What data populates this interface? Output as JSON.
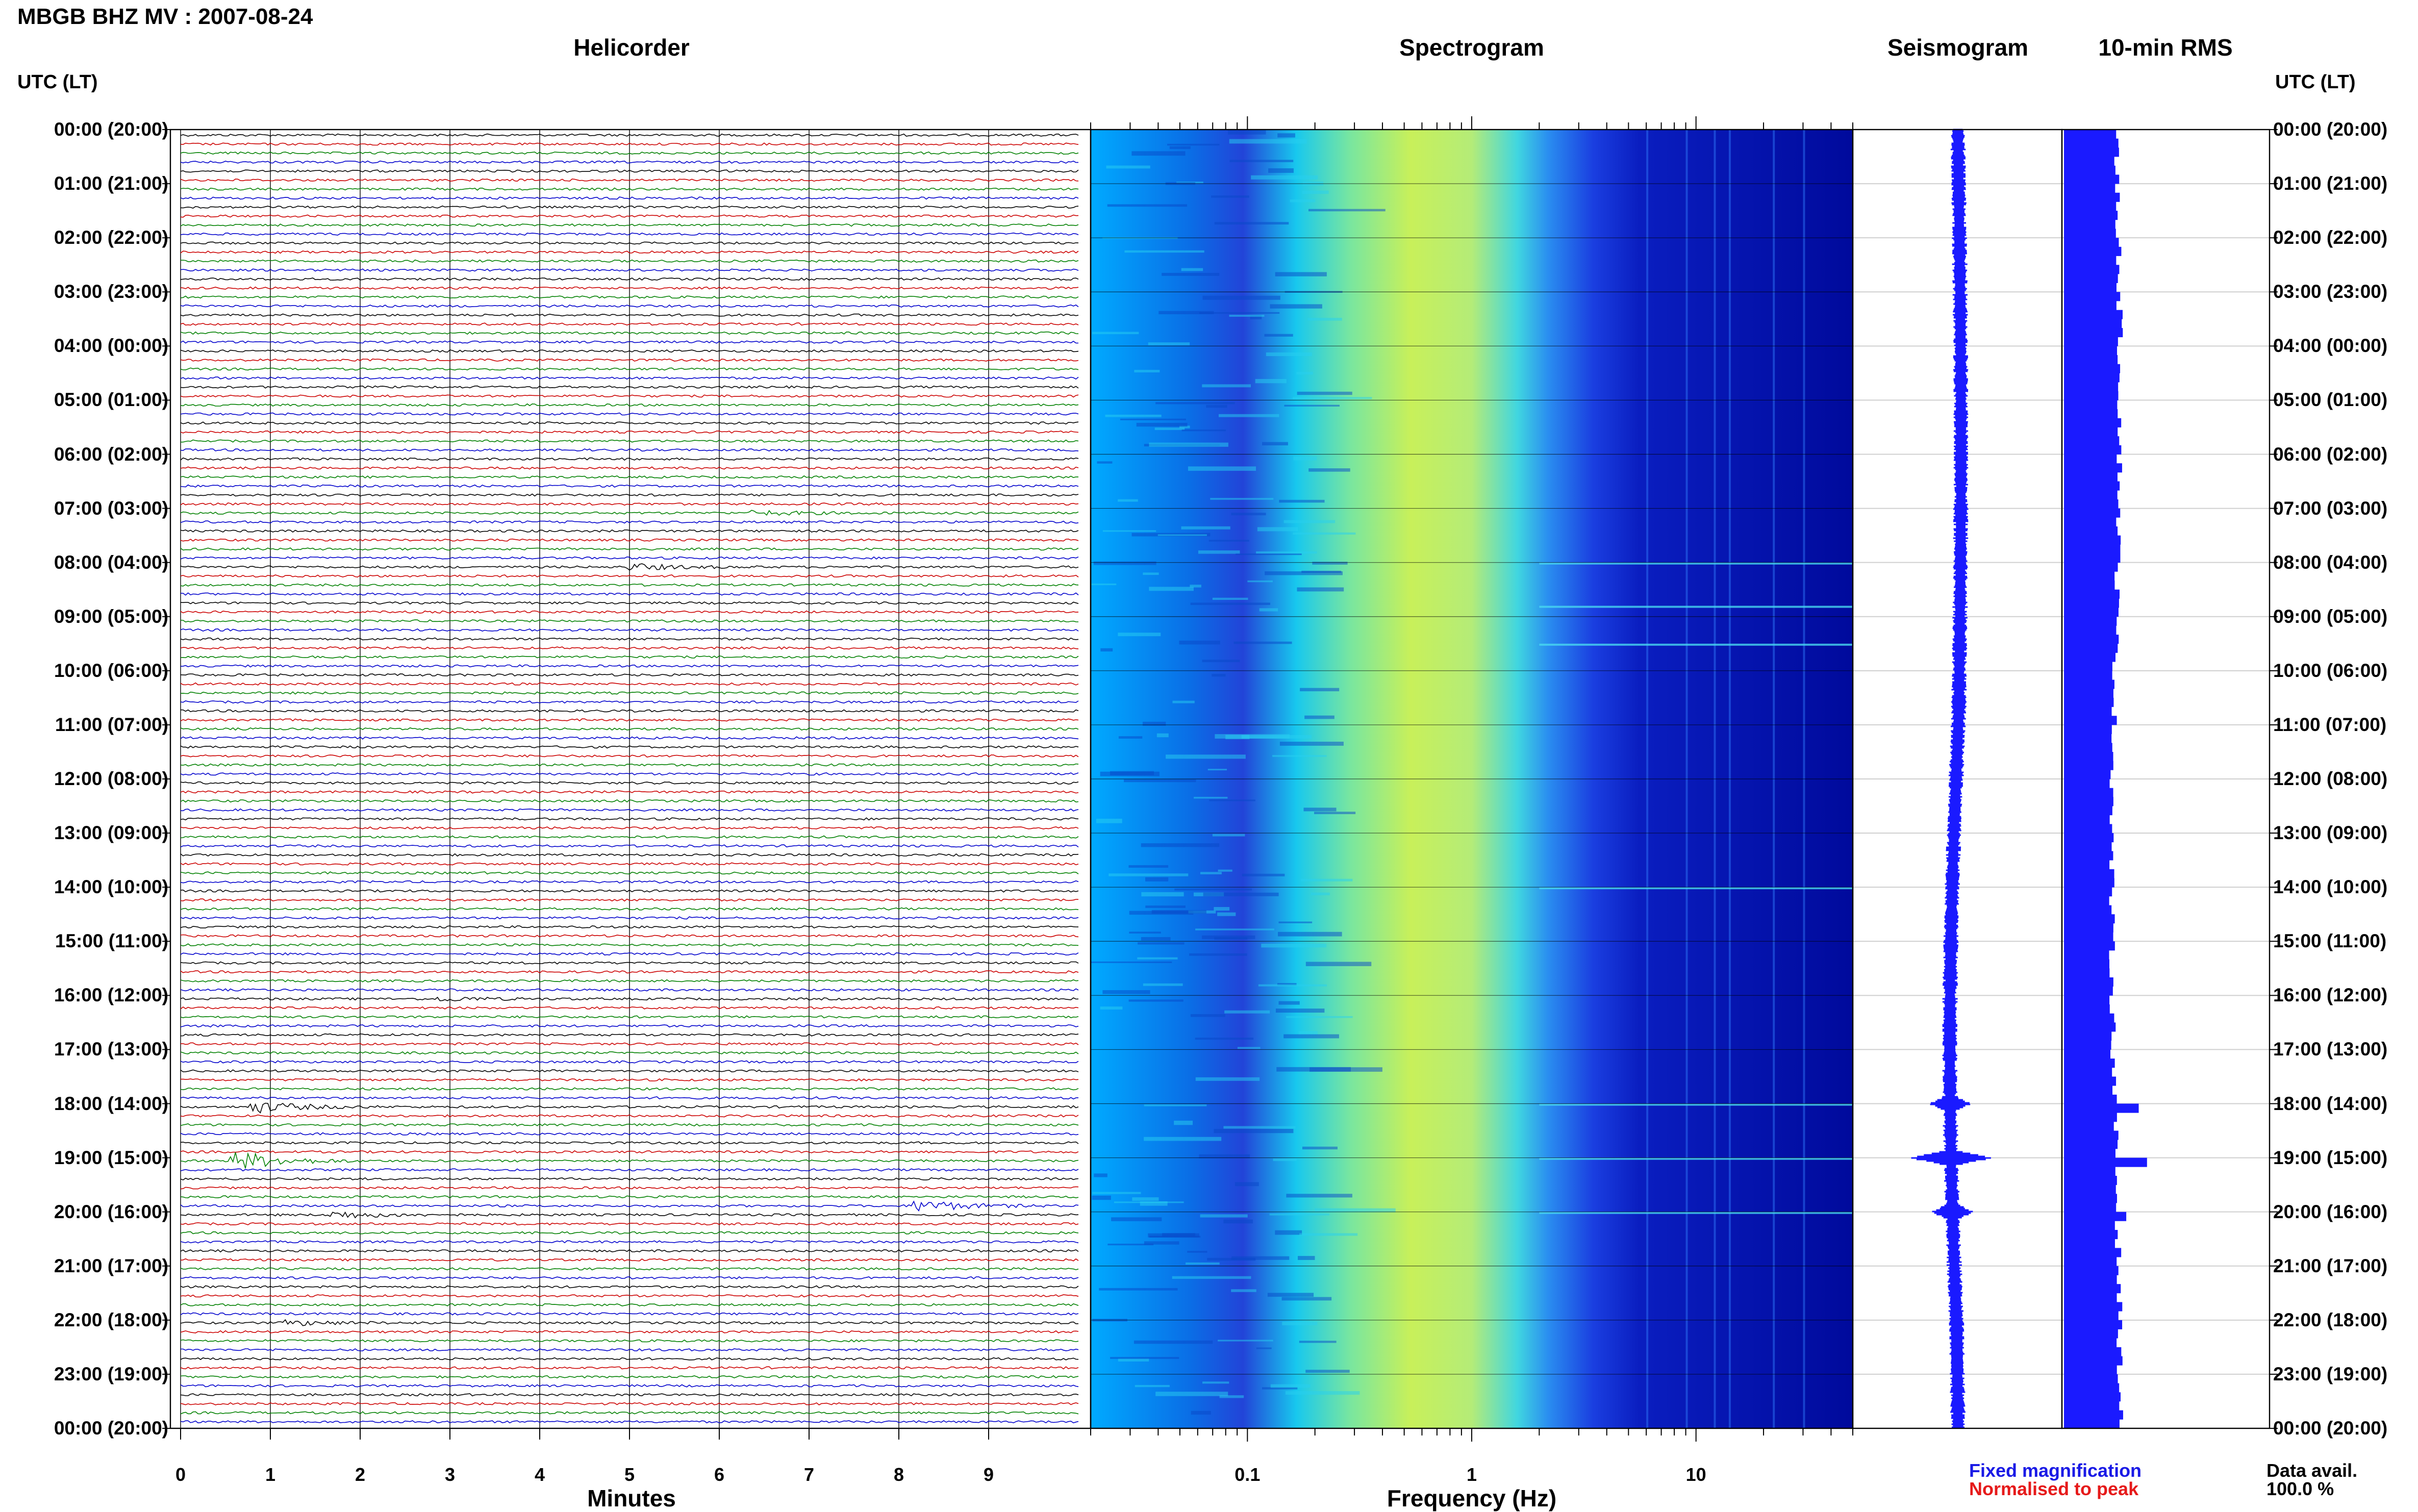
{
  "header": {
    "title": "MBGB BHZ MV : 2007-08-24",
    "utc_left": "UTC (LT)",
    "utc_right": "UTC (LT)"
  },
  "panels": {
    "helicorder": "Helicorder",
    "spectrogram": "Spectrogram",
    "seismogram": "Seismogram",
    "rms": "10-min RMS"
  },
  "time_labels": [
    "00:00 (20:00)",
    "01:00 (21:00)",
    "02:00 (22:00)",
    "03:00 (23:00)",
    "04:00 (00:00)",
    "05:00 (01:00)",
    "06:00 (02:00)",
    "07:00 (03:00)",
    "08:00 (04:00)",
    "09:00 (05:00)",
    "10:00 (06:00)",
    "11:00 (07:00)",
    "12:00 (08:00)",
    "13:00 (09:00)",
    "14:00 (10:00)",
    "15:00 (11:00)",
    "16:00 (12:00)",
    "17:00 (13:00)",
    "18:00 (14:00)",
    "19:00 (15:00)",
    "20:00 (16:00)",
    "21:00 (17:00)",
    "22:00 (18:00)",
    "23:00 (19:00)",
    "00:00 (20:00)"
  ],
  "axes": {
    "minutes_xlabel": "Minutes",
    "minutes_ticks": [
      "0",
      "1",
      "2",
      "3",
      "4",
      "5",
      "6",
      "7",
      "8",
      "9"
    ],
    "frequency_xlabel": "Frequency (Hz)",
    "frequency_ticks": [
      "0.1",
      "1",
      "10"
    ]
  },
  "legend": {
    "fixed": "Fixed magnification",
    "normalised": "Normalised to peak",
    "avail_label": "Data avail.",
    "avail_value": "100.0 %"
  },
  "colors": {
    "trace_cycle": [
      "#000000",
      "#cc0000",
      "#008000",
      "#0000cc"
    ],
    "spectrogram_low": "#00008b",
    "spectrogram_high": "#c8f05a",
    "seismogram": "#1a1aff",
    "rms_bar": "#1a1aff",
    "legend_fixed": "#1a1ae6",
    "legend_normalised": "#e61a1a"
  },
  "chart_data": [
    {
      "type": "line",
      "name": "Helicorder",
      "xlabel": "Minutes",
      "xlim": [
        0,
        10
      ],
      "rows_per_hour": 6,
      "row_count": 144,
      "events": [
        {
          "hour_utc": 7,
          "minute": 6.5,
          "amplitude": 1.2
        },
        {
          "hour_utc": 8,
          "minute": 5.1,
          "amplitude": 1.6
        },
        {
          "hour_utc": 16,
          "minute": 3.0,
          "amplitude": 1.0
        },
        {
          "hour_utc": 18,
          "minute": 0.9,
          "amplitude": 3.0
        },
        {
          "hour_utc": 19,
          "minute": 0.7,
          "amplitude": 5.0
        },
        {
          "hour_utc": 19.83,
          "minute": 8.3,
          "amplitude": 3.2
        },
        {
          "hour_utc": 20,
          "minute": 1.8,
          "amplitude": 1.8
        },
        {
          "hour_utc": 22,
          "minute": 1.3,
          "amplitude": 1.3
        }
      ]
    },
    {
      "type": "heatmap",
      "name": "Spectrogram",
      "xlabel": "Frequency (Hz)",
      "xscale": "log",
      "xlim": [
        0.02,
        50
      ],
      "peak_band_hz": [
        0.2,
        1.0
      ],
      "hours": 24
    },
    {
      "type": "line",
      "name": "Seismogram",
      "hours": 24,
      "spikes_hour_utc": [
        18.0,
        19.0,
        20.0
      ]
    },
    {
      "type": "bar",
      "name": "10-min RMS",
      "bins": 144,
      "baseline_level": 0.25,
      "peaks": [
        {
          "hour_utc": 18.0,
          "value": 0.36
        },
        {
          "hour_utc": 19.0,
          "value": 0.4
        },
        {
          "hour_utc": 20.0,
          "value": 0.3
        }
      ]
    }
  ]
}
